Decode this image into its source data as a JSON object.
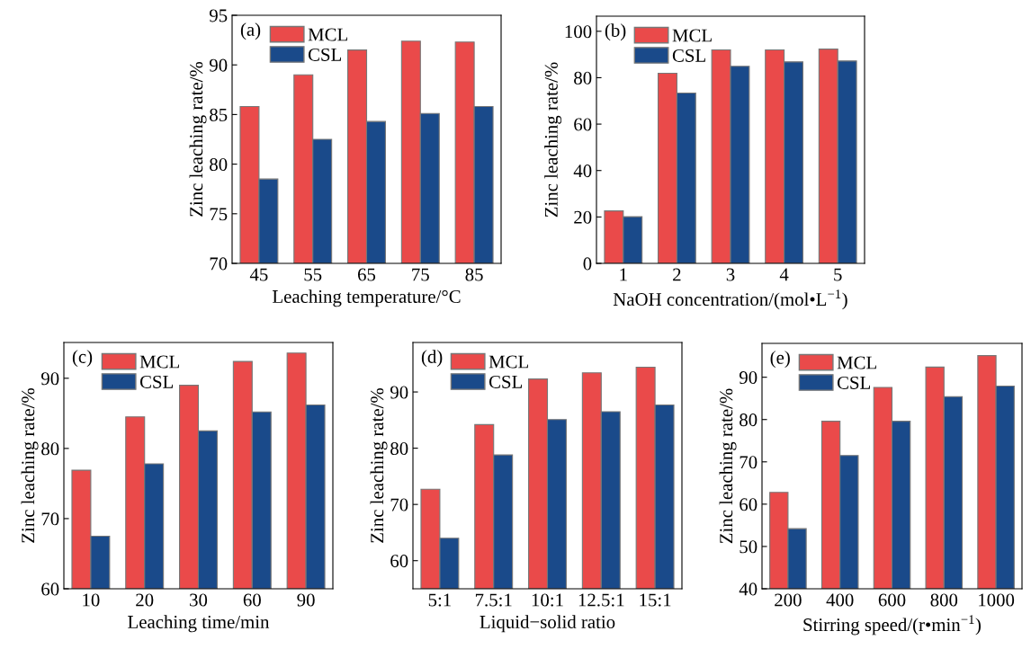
{
  "chart_data": [
    {
      "type": "bar",
      "categories": [
        "45",
        "55",
        "65",
        "75",
        "85"
      ],
      "xlabel": "Leaching temperature/°C",
      "ylabel": "Zinc leaching rate/%",
      "ylim": [
        70,
        95
      ],
      "yticks": [
        70,
        75,
        80,
        85,
        90,
        95
      ],
      "legend": "top left",
      "annotations": [
        "(a)"
      ],
      "series": [
        {
          "name": "MCL",
          "color": "#ea4a4a",
          "values": [
            85.8,
            89.0,
            91.5,
            92.4,
            92.3
          ]
        },
        {
          "name": "CSL",
          "color": "#1a4a8a",
          "values": [
            78.5,
            82.5,
            84.3,
            85.1,
            85.8
          ]
        }
      ]
    },
    {
      "type": "bar",
      "categories": [
        "1",
        "2",
        "3",
        "4",
        "5"
      ],
      "xlabel": "NaOH concentration/(mol•L$^{−1}$)",
      "ylabel": "Zinc leaching rate/%",
      "ylim": [
        0,
        106.5
      ],
      "yticks": [
        0,
        20,
        40,
        60,
        80,
        100
      ],
      "legend": "top left",
      "annotations": [
        "(b)"
      ],
      "series": [
        {
          "name": "MCL",
          "color": "#ea4a4a",
          "values": [
            22.6,
            81.9,
            92.0,
            92.0,
            92.3
          ]
        },
        {
          "name": "CSL",
          "color": "#1a4a8a",
          "values": [
            20.1,
            73.4,
            84.9,
            86.8,
            87.2
          ]
        }
      ]
    },
    {
      "type": "bar",
      "categories": [
        "10",
        "20",
        "30",
        "60",
        "90"
      ],
      "xlabel": "Leaching time/min",
      "ylabel": "Zinc leaching rate/%",
      "ylim": [
        60,
        95.1
      ],
      "yticks": [
        60,
        70,
        80,
        90
      ],
      "legend": "top left",
      "annotations": [
        "(c)"
      ],
      "series": [
        {
          "name": "MCL",
          "color": "#ea4a4a",
          "values": [
            76.9,
            84.5,
            89.0,
            92.4,
            93.6
          ]
        },
        {
          "name": "CSL",
          "color": "#1a4a8a",
          "values": [
            67.5,
            77.8,
            82.5,
            85.2,
            86.2
          ]
        }
      ]
    },
    {
      "type": "bar",
      "categories": [
        "5:1",
        "7.5:1",
        "10:1",
        "12.5:1",
        "15:1"
      ],
      "xlabel": "Liquid−solid ratio",
      "ylabel": "Zinc leaching rate/%",
      "ylim": [
        55,
        98.8
      ],
      "yticks": [
        60,
        70,
        80,
        90
      ],
      "legend": "top left",
      "annotations": [
        "(d)"
      ],
      "series": [
        {
          "name": "MCL",
          "color": "#ea4a4a",
          "values": [
            72.7,
            84.2,
            92.3,
            93.4,
            94.4
          ]
        },
        {
          "name": "CSL",
          "color": "#1a4a8a",
          "values": [
            64.0,
            78.8,
            85.1,
            86.5,
            87.7
          ]
        }
      ]
    },
    {
      "type": "bar",
      "categories": [
        "200",
        "400",
        "600",
        "800",
        "1000"
      ],
      "xlabel": "Stirring speed/(r•min$^{−1}$)",
      "ylabel": "Zinc leaching rate/%",
      "ylim": [
        40,
        98
      ],
      "yticks": [
        40,
        50,
        60,
        70,
        80,
        90
      ],
      "legend": "top left",
      "annotations": [
        "(e)"
      ],
      "series": [
        {
          "name": "MCL",
          "color": "#ea4a4a",
          "values": [
            62.8,
            79.6,
            87.6,
            92.4,
            95.1
          ]
        },
        {
          "name": "CSL",
          "color": "#1a4a8a",
          "values": [
            54.2,
            71.5,
            79.6,
            85.4,
            87.9
          ]
        }
      ]
    }
  ]
}
